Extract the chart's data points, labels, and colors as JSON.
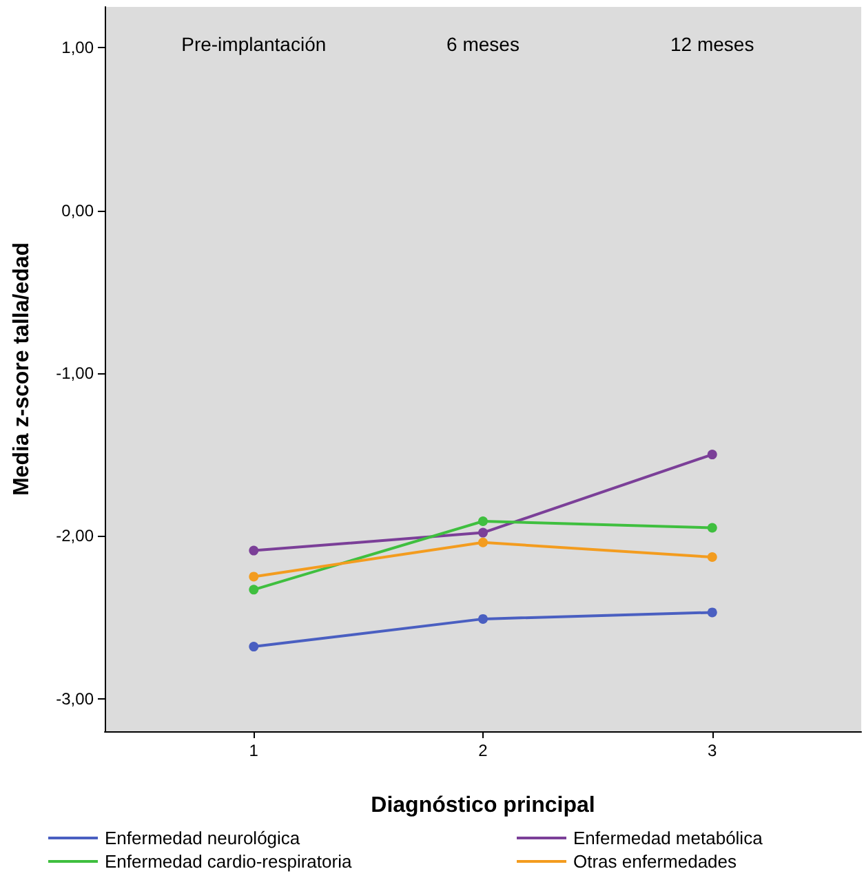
{
  "chart_data": {
    "type": "line",
    "xlabel": "Diagnóstico principal",
    "ylabel": "Media z-score talla/edad",
    "x": [
      1,
      2,
      3
    ],
    "xlim": [
      0.35,
      3.65
    ],
    "xticks": [
      1,
      2,
      3
    ],
    "ylim": [
      -3.2,
      1.25
    ],
    "yticks": [
      {
        "value": -3,
        "label": "-3,00"
      },
      {
        "value": -2,
        "label": "-2,00"
      },
      {
        "value": -1,
        "label": "-1,00"
      },
      {
        "value": 0,
        "label": "0,00"
      },
      {
        "value": 1,
        "label": "1,00"
      }
    ],
    "series": [
      {
        "name": "Enfermedad neurológica",
        "color": "#4a5fc1",
        "values": [
          -2.68,
          -2.51,
          -2.47
        ]
      },
      {
        "name": "Enfermedad metabólica",
        "color": "#7b3f98",
        "values": [
          -2.09,
          -1.98,
          -1.5
        ]
      },
      {
        "name": "Enfermedad cardio-respiratoria",
        "color": "#3fbf3f",
        "values": [
          -2.33,
          -1.91,
          -1.95
        ]
      },
      {
        "name": "Otras enfermedades",
        "color": "#f39c1f",
        "values": [
          -2.25,
          -2.04,
          -2.13
        ]
      }
    ],
    "annotations": [
      "Pre-implantación",
      "6 meses",
      "12 meses"
    ],
    "grid": false,
    "legend": "bottom",
    "marker": "circle",
    "line_style": "solid"
  }
}
